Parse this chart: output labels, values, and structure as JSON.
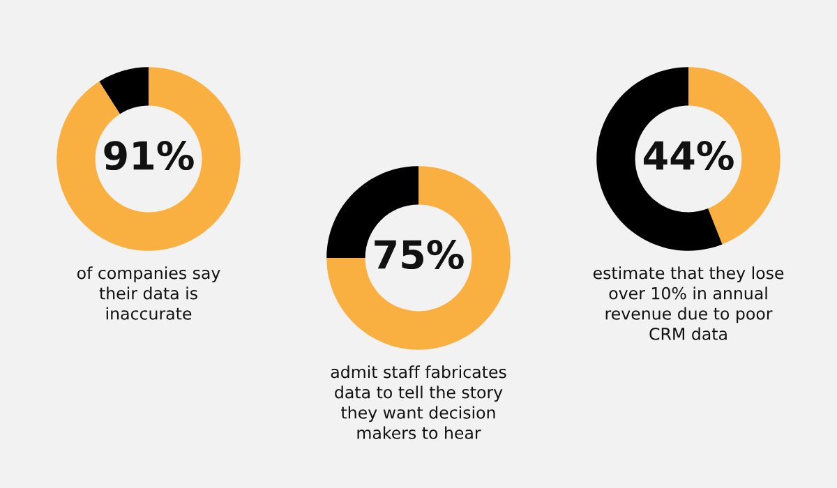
{
  "chart_data": [
    {
      "type": "donut",
      "categories": [
        null,
        null
      ],
      "values": [
        91,
        9
      ],
      "colors": [
        "#f9b040",
        "#000000"
      ],
      "value_labels": [
        "91%",
        null
      ],
      "annotations": [
        "of companies say\ntheir data is\ninaccurate"
      ]
    },
    {
      "type": "donut",
      "categories": [
        null,
        null
      ],
      "values": [
        75,
        25
      ],
      "colors": [
        "#f9b040",
        "#000000"
      ],
      "value_labels": [
        "75%",
        null
      ],
      "annotations": [
        "admit staff fabricates\ndata to tell the story\nthey want decision\nmakers to hear"
      ]
    },
    {
      "type": "donut",
      "categories": [
        null,
        null
      ],
      "values": [
        44,
        56
      ],
      "colors": [
        "#f9b040",
        "#000000"
      ],
      "value_labels": [
        "44%",
        null
      ],
      "annotations": [
        "estimate that they lose\nover 10% in annual\nrevenue due to poor\nCRM data"
      ]
    }
  ]
}
